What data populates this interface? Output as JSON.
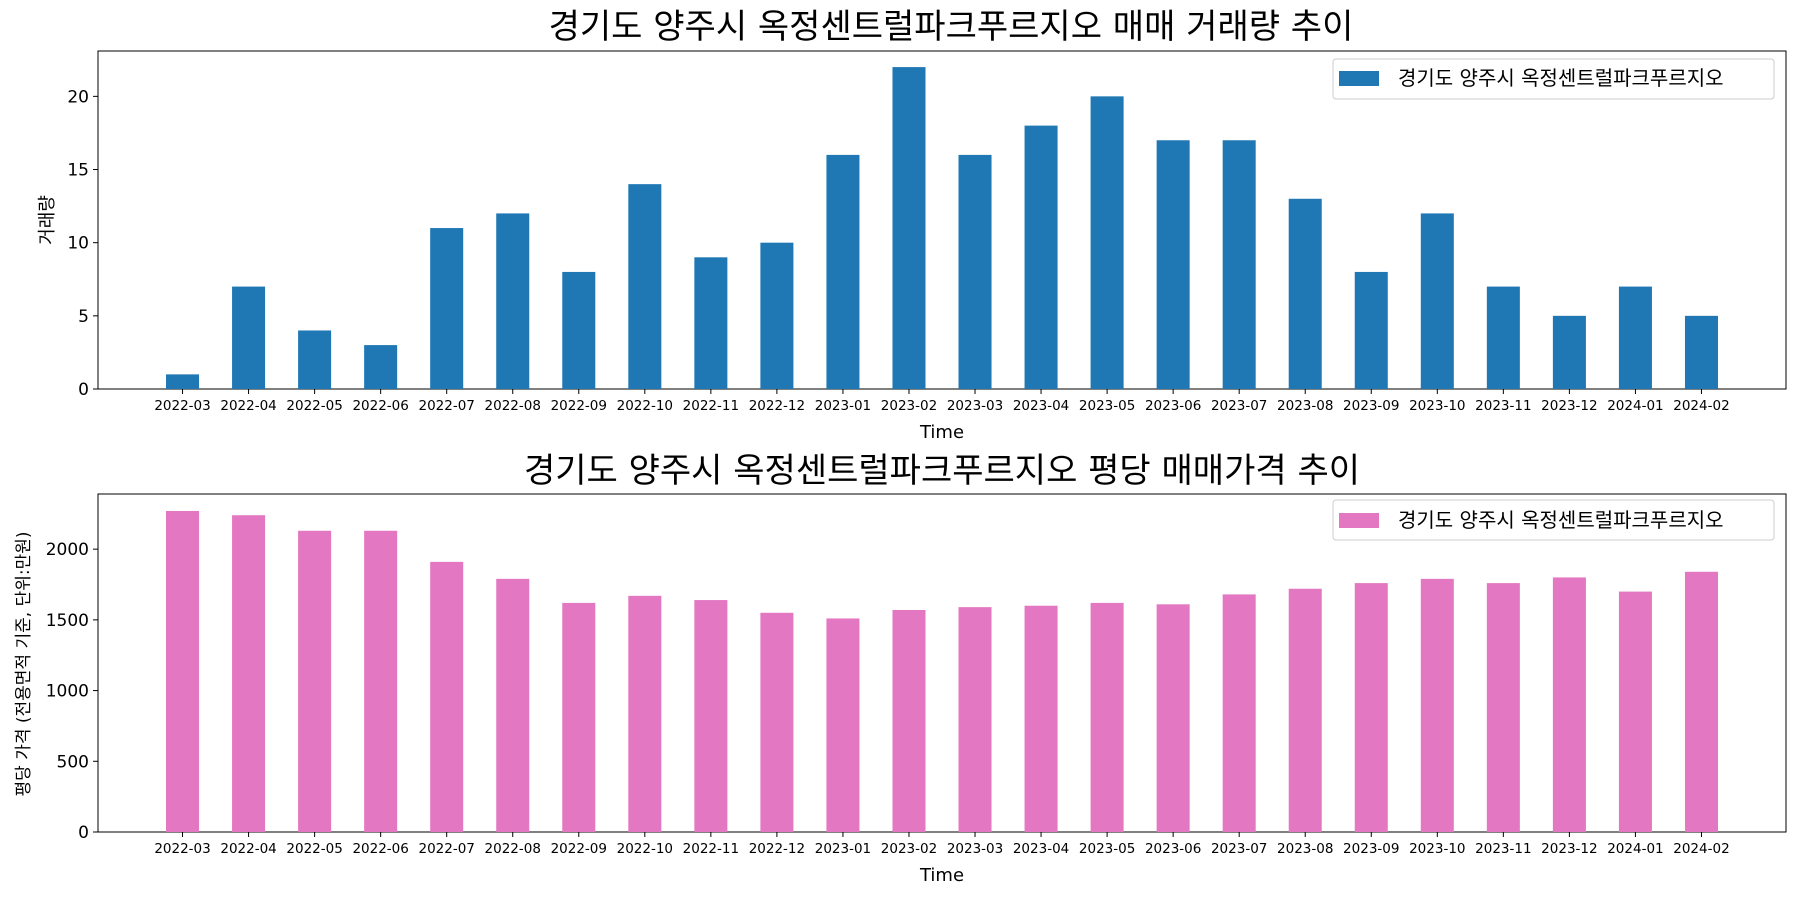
{
  "chart_data": [
    {
      "type": "bar",
      "title": "경기도 양주시 옥정센트럴파크푸르지오 매매 거래량 추이",
      "xlabel": "Time",
      "ylabel": "거래량",
      "categories": [
        "2022-03",
        "2022-04",
        "2022-05",
        "2022-06",
        "2022-07",
        "2022-08",
        "2022-09",
        "2022-10",
        "2022-11",
        "2022-12",
        "2023-01",
        "2023-02",
        "2023-03",
        "2023-04",
        "2023-05",
        "2023-06",
        "2023-07",
        "2023-08",
        "2023-09",
        "2023-10",
        "2023-11",
        "2023-12",
        "2024-01",
        "2024-02"
      ],
      "series": [
        {
          "name": "경기도 양주시 옥정센트럴파크푸르지오",
          "color": "#1f77b4",
          "values": [
            1,
            7,
            4,
            3,
            11,
            12,
            8,
            14,
            9,
            10,
            16,
            22,
            16,
            18,
            20,
            17,
            17,
            13,
            8,
            12,
            7,
            5,
            7,
            5
          ]
        }
      ],
      "ylim": [
        0,
        23.1
      ],
      "yticks": [
        0,
        5,
        10,
        15,
        20
      ],
      "legend": "top-right",
      "grid": false
    },
    {
      "type": "bar",
      "title": "경기도 양주시 옥정센트럴파크푸르지오 평당 매매가격 추이",
      "xlabel": "Time",
      "ylabel": "평당 가격 (전용면적 기준, 단위:만원)",
      "categories": [
        "2022-03",
        "2022-04",
        "2022-05",
        "2022-06",
        "2022-07",
        "2022-08",
        "2022-09",
        "2022-10",
        "2022-11",
        "2022-12",
        "2023-01",
        "2023-02",
        "2023-03",
        "2023-04",
        "2023-05",
        "2023-06",
        "2023-07",
        "2023-08",
        "2023-09",
        "2023-10",
        "2023-11",
        "2023-12",
        "2024-01",
        "2024-02"
      ],
      "series": [
        {
          "name": "경기도 양주시 옥정센트럴파크푸르지오",
          "color": "#e377c2",
          "values": [
            2270,
            2240,
            2130,
            2130,
            1910,
            1790,
            1620,
            1670,
            1640,
            1550,
            1510,
            1570,
            1590,
            1600,
            1620,
            1610,
            1680,
            1720,
            1760,
            1790,
            1760,
            1800,
            1700,
            1840
          ]
        }
      ],
      "ylim": [
        0,
        2390
      ],
      "yticks": [
        0,
        500,
        1000,
        1500,
        2000
      ],
      "legend": "top-right",
      "grid": false
    }
  ]
}
